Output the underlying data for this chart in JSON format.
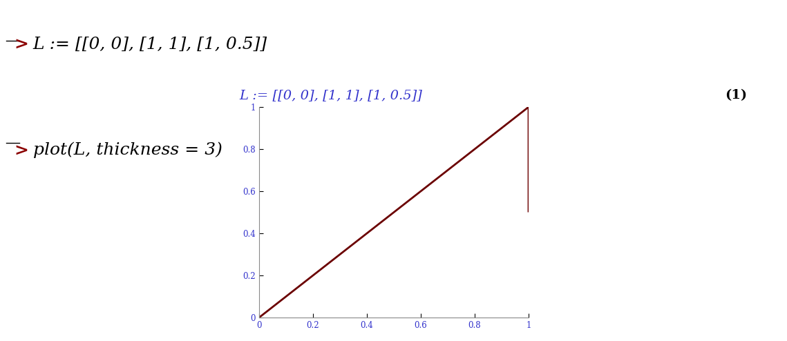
{
  "line_x": [
    0,
    1,
    1
  ],
  "line_y": [
    0,
    1,
    0.5
  ],
  "line_color": "#6B0000",
  "line_width": 2.0,
  "xlim": [
    0,
    1
  ],
  "ylim": [
    0,
    1
  ],
  "xticks": [
    0,
    0.2,
    0.4,
    0.6,
    0.8,
    1
  ],
  "yticks": [
    0,
    0.2,
    0.4,
    0.6,
    0.8,
    1
  ],
  "tick_label_color": "#3333CC",
  "tick_fontsize": 8.5,
  "bg_color": "#FFFFFF",
  "input_line1_prompt": "> ",
  "input_line1_text": "L := [[0, 0], [1, 1], [1, 0.5]]",
  "output_line1": "L := [[0, 0], [1, 1], [1, 0.5]]",
  "label_num": "(1)",
  "input_line2_prompt": "> ",
  "input_line2_text": "plot(L, thickness = 3)",
  "prompt_color": "#8B0000",
  "input_color": "#000000",
  "output_color": "#3333CC",
  "label_color": "#000000",
  "figure_width": 11.39,
  "figure_height": 4.94,
  "scrollbar_color": "#C8C8C8",
  "scrollbar_top_color": "#E8E8E8"
}
